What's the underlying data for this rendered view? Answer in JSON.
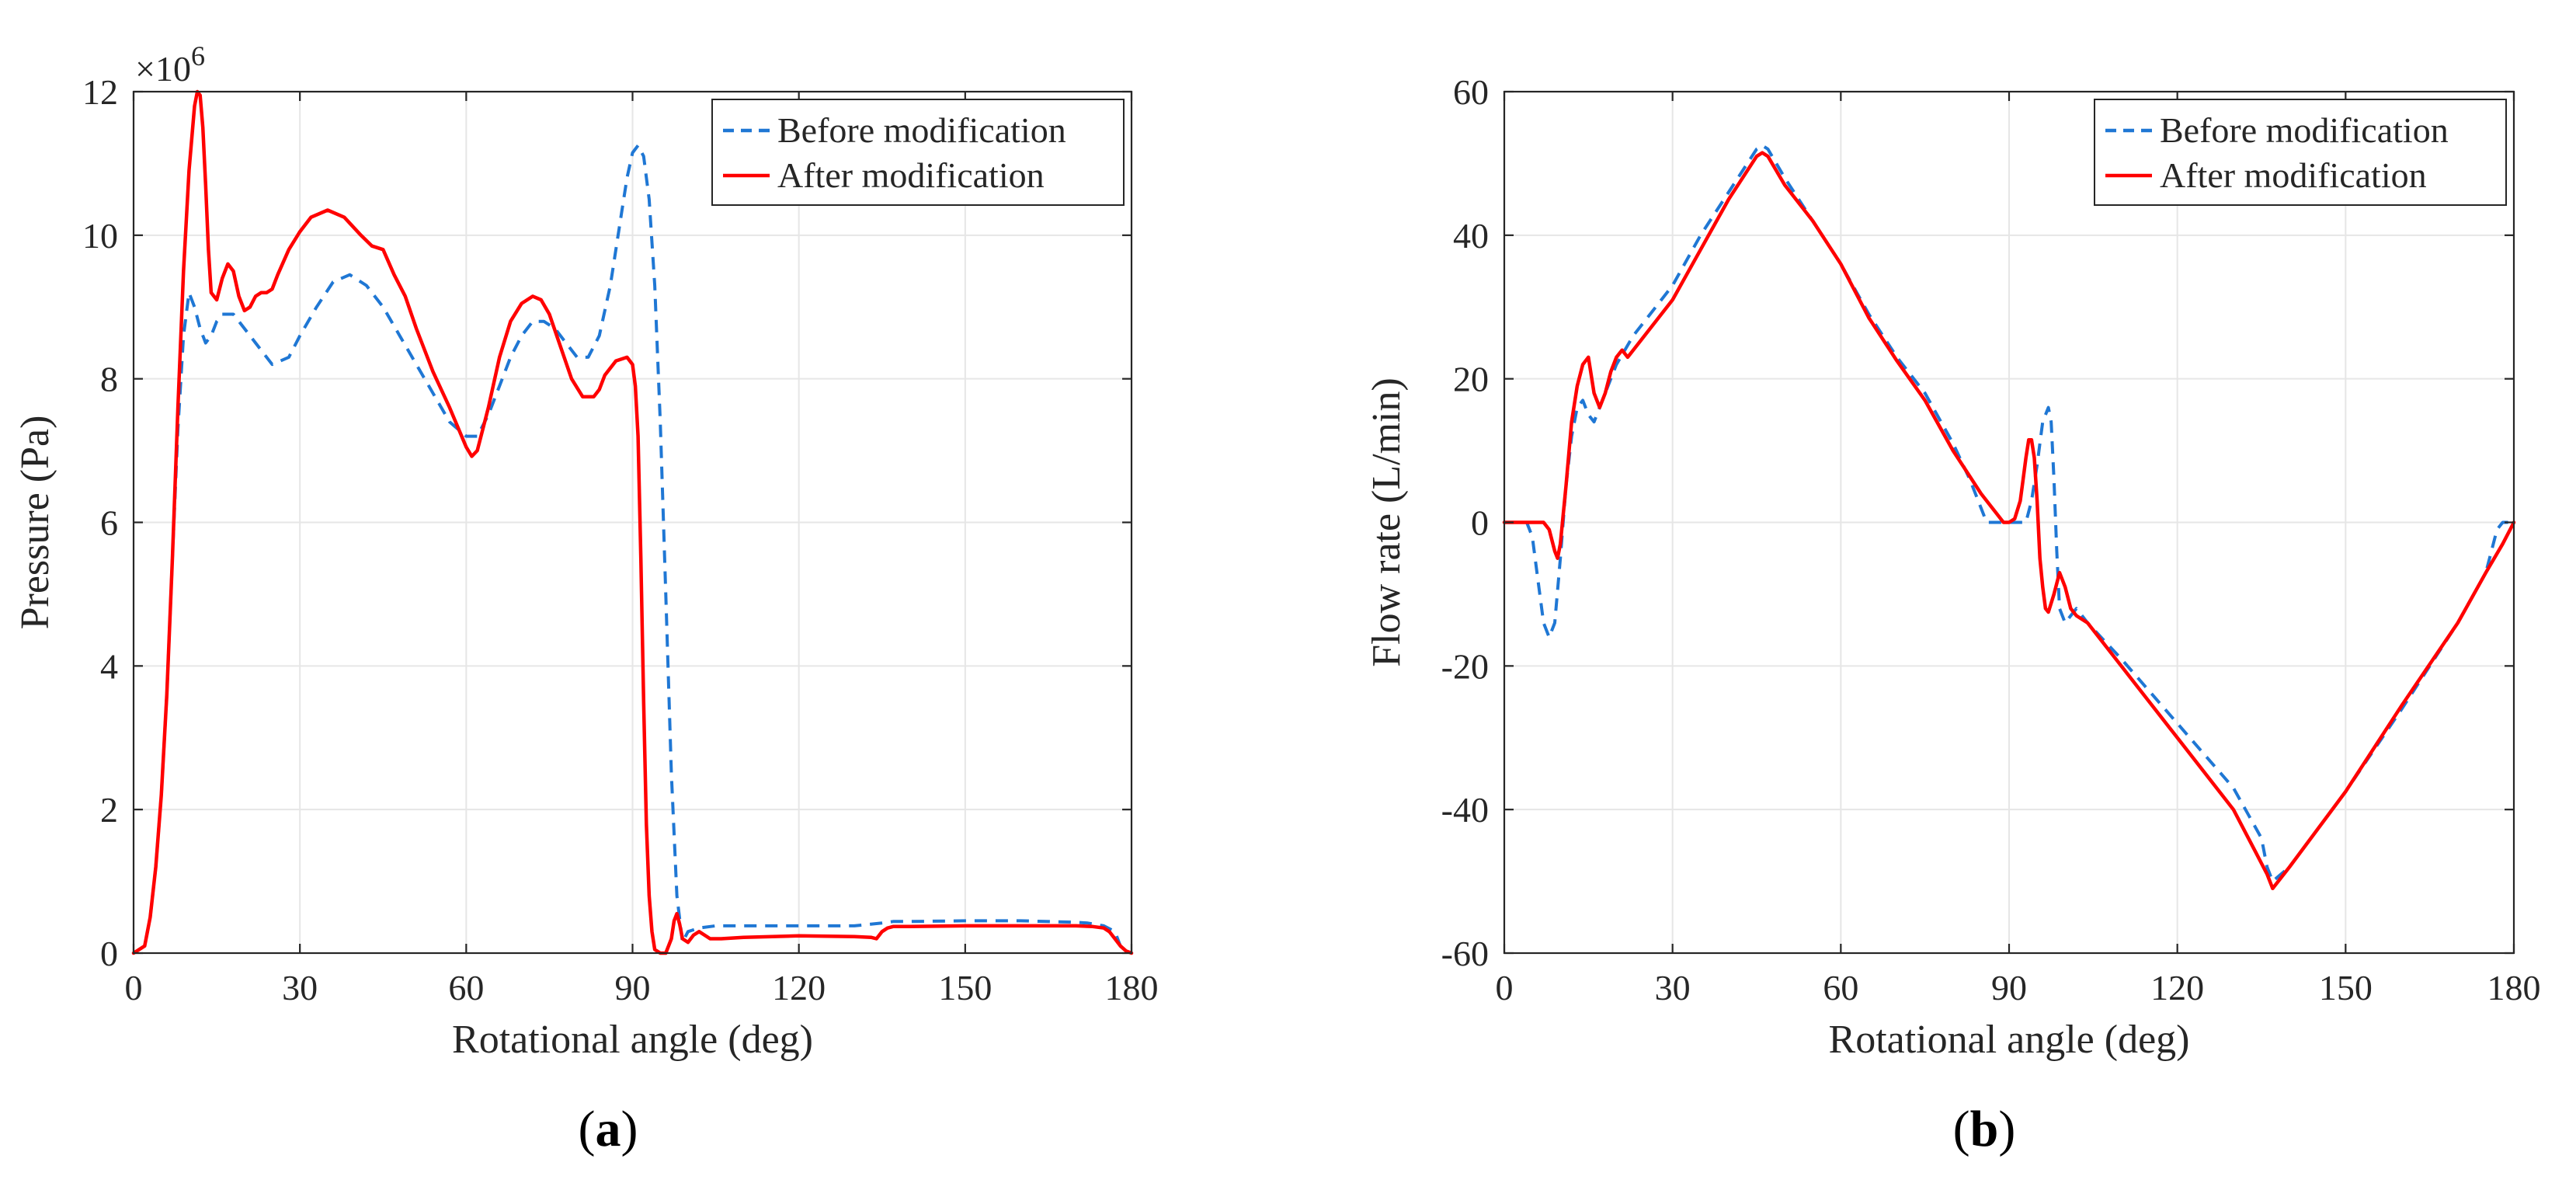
{
  "chart_data": [
    {
      "id": "a",
      "type": "line",
      "caption": "a",
      "xlabel": "Rotational angle (deg)",
      "ylabel": "Pressure (Pa)",
      "exponent_label": "×10",
      "exponent_power": "6",
      "xlim": [
        0,
        180
      ],
      "ylim": [
        0,
        12
      ],
      "xticks": [
        0,
        30,
        60,
        90,
        120,
        150,
        180
      ],
      "yticks": [
        0,
        2,
        4,
        6,
        8,
        10,
        12
      ],
      "grid": true,
      "legend_position": "top-right",
      "series": [
        {
          "name": "Before modification",
          "color": "#1f77d4",
          "style": "dashed",
          "x": [
            0,
            2,
            3,
            4,
            5,
            6,
            7,
            8,
            9,
            10,
            11,
            12,
            13,
            14,
            15,
            16,
            17,
            18,
            20,
            22,
            25,
            28,
            30,
            33,
            36,
            39,
            42,
            45,
            48,
            51,
            54,
            57,
            60,
            62,
            64,
            66,
            68,
            70,
            72,
            74,
            76,
            78,
            80,
            82,
            84,
            86,
            88,
            89,
            90,
            91,
            92,
            93,
            94,
            95,
            96,
            97,
            98,
            99,
            100,
            102,
            105,
            110,
            120,
            130,
            135,
            137,
            140,
            150,
            160,
            170,
            172,
            175,
            177,
            178,
            179,
            180
          ],
          "values": [
            0,
            0.1,
            0.5,
            1.2,
            2.2,
            3.6,
            5.5,
            7.3,
            8.6,
            9.2,
            9.0,
            8.7,
            8.5,
            8.6,
            8.8,
            8.9,
            8.9,
            8.9,
            8.7,
            8.5,
            8.2,
            8.3,
            8.6,
            9.0,
            9.35,
            9.45,
            9.3,
            9.0,
            8.6,
            8.2,
            7.8,
            7.4,
            7.2,
            7.2,
            7.5,
            7.9,
            8.3,
            8.6,
            8.8,
            8.8,
            8.7,
            8.5,
            8.3,
            8.3,
            8.6,
            9.3,
            10.3,
            10.8,
            11.15,
            11.25,
            11.1,
            10.5,
            9.3,
            7.4,
            5.0,
            2.5,
            0.8,
            0.15,
            0.3,
            0.35,
            0.38,
            0.38,
            0.38,
            0.38,
            0.42,
            0.44,
            0.44,
            0.45,
            0.45,
            0.43,
            0.42,
            0.38,
            0.3,
            0.1,
            0.03,
            0
          ]
        },
        {
          "name": "After modification",
          "color": "#ff0000",
          "style": "solid",
          "x": [
            0,
            2,
            3,
            4,
            5,
            6,
            7,
            8,
            9,
            10,
            11,
            11.5,
            12,
            12.5,
            13,
            13.5,
            14,
            15,
            16,
            17,
            18,
            19,
            20,
            21,
            22,
            23,
            24,
            25,
            26,
            28,
            30,
            32,
            35,
            38,
            41,
            43,
            45,
            47,
            49,
            51,
            54,
            57,
            60,
            61,
            62,
            64,
            66,
            68,
            70,
            72,
            73.5,
            75,
            77,
            79,
            81,
            83,
            84,
            85,
            87,
            89,
            90,
            90.5,
            91,
            91.5,
            92,
            92.5,
            93,
            93.5,
            94,
            95,
            96,
            97,
            97.5,
            98,
            98.5,
            99,
            100,
            101,
            102,
            103,
            104,
            106,
            110,
            120,
            130,
            133,
            134,
            135,
            136,
            137,
            140,
            150,
            160,
            170,
            173,
            175,
            176,
            177,
            178,
            179,
            180
          ],
          "values": [
            0,
            0.1,
            0.5,
            1.2,
            2.2,
            3.6,
            5.5,
            7.6,
            9.5,
            10.9,
            11.8,
            12.0,
            11.95,
            11.5,
            10.7,
            9.8,
            9.2,
            9.1,
            9.4,
            9.6,
            9.5,
            9.15,
            8.95,
            9.0,
            9.15,
            9.2,
            9.2,
            9.25,
            9.45,
            9.8,
            10.05,
            10.25,
            10.35,
            10.25,
            10.0,
            9.85,
            9.8,
            9.45,
            9.15,
            8.7,
            8.1,
            7.6,
            7.05,
            6.92,
            7.0,
            7.6,
            8.3,
            8.8,
            9.05,
            9.15,
            9.1,
            8.9,
            8.45,
            8.0,
            7.75,
            7.75,
            7.85,
            8.05,
            8.25,
            8.3,
            8.2,
            7.9,
            7.2,
            5.5,
            3.5,
            1.8,
            0.8,
            0.3,
            0.05,
            0,
            0,
            0.2,
            0.45,
            0.55,
            0.4,
            0.2,
            0.15,
            0.25,
            0.3,
            0.25,
            0.2,
            0.2,
            0.22,
            0.24,
            0.23,
            0.22,
            0.2,
            0.3,
            0.35,
            0.37,
            0.37,
            0.38,
            0.38,
            0.38,
            0.37,
            0.35,
            0.3,
            0.2,
            0.1,
            0.03,
            0
          ]
        }
      ]
    },
    {
      "id": "b",
      "type": "line",
      "caption": "b",
      "xlabel": "Rotational angle (deg)",
      "ylabel": "Flow rate (L/min)",
      "xlim": [
        0,
        180
      ],
      "ylim": [
        -60,
        60
      ],
      "xticks": [
        0,
        30,
        60,
        90,
        120,
        150,
        180
      ],
      "yticks": [
        -60,
        -40,
        -20,
        0,
        20,
        40,
        60
      ],
      "grid": true,
      "legend_position": "top-right",
      "series": [
        {
          "name": "Before modification",
          "color": "#1f77d4",
          "style": "dashed",
          "x": [
            0,
            4,
            5,
            6,
            7,
            8,
            9,
            10,
            11,
            12,
            13,
            14,
            15,
            16,
            17,
            18,
            20,
            23,
            26,
            30,
            35,
            40,
            45,
            46,
            47,
            50,
            55,
            60,
            65,
            70,
            75,
            80,
            83,
            85,
            86,
            87,
            88,
            89,
            90,
            91,
            92,
            93,
            94,
            95,
            96,
            97,
            97.5,
            98,
            98.5,
            99,
            100,
            101,
            102,
            103,
            104,
            110,
            120,
            130,
            135,
            136,
            137,
            140,
            150,
            160,
            170,
            175,
            176,
            177,
            178,
            179,
            180
          ],
          "values": [
            0,
            0,
            -2,
            -8,
            -14,
            -16,
            -14,
            -5,
            5,
            12,
            16,
            17,
            15,
            14,
            16,
            18,
            22,
            26,
            29,
            33,
            40,
            46,
            52,
            52.5,
            52,
            48,
            42,
            36,
            29,
            23,
            18,
            11,
            6,
            2,
            0,
            0,
            0,
            0,
            0,
            0,
            0,
            0,
            3,
            8,
            14,
            16,
            14,
            6,
            -4,
            -12,
            -14,
            -13,
            -12,
            -13,
            -14,
            -19,
            -28,
            -37,
            -44,
            -48,
            -50,
            -48,
            -37.5,
            -26,
            -14,
            -7,
            -4,
            -1,
            0,
            0,
            0
          ]
        },
        {
          "name": "After modification",
          "color": "#ff0000",
          "style": "solid",
          "x": [
            0,
            5,
            7,
            8,
            9,
            9.5,
            10,
            11,
            12,
            13,
            14,
            15,
            16,
            17,
            18,
            19,
            20,
            21,
            22,
            24,
            27,
            30,
            35,
            40,
            45,
            46,
            47,
            50,
            55,
            60,
            65,
            70,
            75,
            80,
            85,
            88,
            89,
            90,
            91,
            92,
            92.5,
            93,
            93.5,
            94,
            94.5,
            95,
            95.5,
            96,
            96.5,
            97,
            98,
            99,
            100,
            101,
            102,
            104,
            110,
            120,
            130,
            134,
            135,
            136,
            137,
            140,
            150,
            160,
            170,
            175,
            178,
            180
          ],
          "values": [
            0,
            0,
            0,
            -1,
            -4,
            -5,
            -3,
            5,
            14,
            19,
            22,
            23,
            18,
            16,
            18,
            21,
            23,
            24,
            23,
            25,
            28,
            31,
            38,
            45,
            51,
            51.5,
            51,
            47,
            42,
            36,
            28.5,
            22.5,
            17,
            10,
            4,
            1,
            0,
            0,
            0.5,
            3,
            6,
            9,
            11.5,
            11.5,
            9,
            3,
            -5,
            -9,
            -12,
            -12.5,
            -10,
            -7,
            -9,
            -12,
            -13,
            -14,
            -20,
            -30,
            -40,
            -46,
            -47.5,
            -49,
            -51,
            -48,
            -37.5,
            -25.5,
            -14,
            -7,
            -3,
            0
          ]
        }
      ]
    }
  ]
}
